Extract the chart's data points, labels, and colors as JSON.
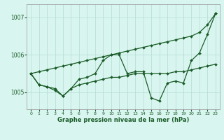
{
  "xlabel": "Graphe pression niveau de la mer (hPa)",
  "bg_color": "#d9f5f0",
  "grid_color": "#b0ddd0",
  "line_color": "#1a5c28",
  "markersize": 2.0,
  "linewidth": 0.9,
  "xlim": [
    -0.5,
    23.5
  ],
  "ylim": [
    1004.55,
    1007.35
  ],
  "yticks": [
    1005,
    1006,
    1007
  ],
  "xticks": [
    0,
    1,
    2,
    3,
    4,
    5,
    6,
    7,
    8,
    9,
    10,
    11,
    12,
    13,
    14,
    15,
    16,
    17,
    18,
    19,
    20,
    21,
    22,
    23
  ],
  "series_diagonal": [
    1005.5,
    1005.55,
    1005.6,
    1005.65,
    1005.7,
    1005.75,
    1005.8,
    1005.85,
    1005.9,
    1005.95,
    1006.0,
    1006.05,
    1006.1,
    1006.15,
    1006.2,
    1006.25,
    1006.3,
    1006.35,
    1006.4,
    1006.45,
    1006.5,
    1006.6,
    1006.8,
    1007.1
  ],
  "series_fluctuating": [
    1005.5,
    1005.2,
    1005.15,
    1005.05,
    1004.9,
    1005.1,
    1005.35,
    1005.4,
    1005.5,
    1005.85,
    1006.0,
    1006.0,
    1005.5,
    1005.55,
    1005.55,
    1004.85,
    1004.77,
    1005.25,
    1005.3,
    1005.25,
    1005.85,
    1006.05,
    1006.55,
    1007.1
  ],
  "series_flat": [
    1005.5,
    1005.2,
    1005.15,
    1005.1,
    1004.9,
    1005.1,
    1005.2,
    1005.25,
    1005.3,
    1005.35,
    1005.4,
    1005.4,
    1005.45,
    1005.5,
    1005.5,
    1005.5,
    1005.5,
    1005.5,
    1005.55,
    1005.55,
    1005.6,
    1005.65,
    1005.7,
    1005.75
  ]
}
